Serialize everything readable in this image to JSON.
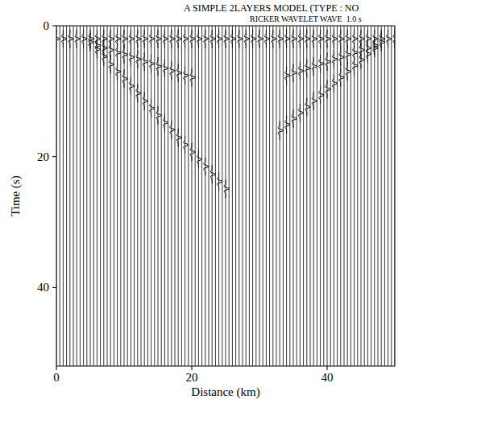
{
  "chart_data": {
    "type": "wiggle",
    "title": "A SIMPLE 2LAYERS MODEL (TYPE : NO",
    "subtitle": "RICKER WAVELET WAVE  1.0 s",
    "x_label": "Distance (km)",
    "y_label": "Time (s)",
    "xlim": [
      0,
      50
    ],
    "ylim": [
      0,
      52
    ],
    "xticks": [
      0,
      20,
      40
    ],
    "yticks": [
      0,
      20,
      40
    ],
    "color": "#000000",
    "x": [
      0,
      0.5,
      1,
      1.5,
      2,
      2.5,
      3,
      3.5,
      4,
      4.5,
      5,
      5.5,
      6,
      6.5,
      7,
      7.5,
      8,
      8.5,
      9,
      9.5,
      10,
      10.5,
      11,
      11.5,
      12,
      12.5,
      13,
      13.5,
      14,
      14.5,
      15,
      15.5,
      16,
      16.5,
      17,
      17.5,
      18,
      18.5,
      19,
      19.5,
      20,
      20.5,
      21,
      21.5,
      22,
      22.5,
      23,
      23.5,
      24,
      24.5,
      25,
      25.5,
      26,
      26.5,
      27,
      27.5,
      28,
      28.5,
      29,
      29.5,
      30,
      30.5,
      31,
      31.5,
      32,
      32.5,
      33,
      33.5,
      34,
      34.5,
      35,
      35.5,
      36,
      36.5,
      37,
      37.5,
      38,
      38.5,
      39,
      39.5,
      40,
      40.5,
      41,
      41.5,
      42,
      42.5,
      43,
      43.5,
      44,
      44.5,
      45,
      45.5,
      46,
      46.5,
      47,
      47.5,
      48,
      48.5,
      49,
      49.5,
      50
    ],
    "series": [
      {
        "x": [
          0,
          1,
          2,
          3,
          4,
          5,
          6,
          7,
          8,
          9,
          10,
          11,
          12,
          13,
          14,
          15,
          16,
          17,
          18,
          19,
          20,
          21,
          22,
          23,
          24,
          25,
          26,
          27,
          28,
          29,
          30,
          31,
          32,
          33,
          34,
          35,
          36,
          37,
          38,
          39,
          40,
          41,
          42,
          43,
          44,
          45,
          46,
          47,
          48,
          49,
          50
        ],
        "values": [
          2.0,
          2.0,
          2.0,
          2.0,
          2.0,
          2.0,
          2.0,
          2.0,
          2.0,
          2.0,
          2.0,
          2.0,
          2.0,
          2.0,
          2.0,
          2.0,
          2.0,
          2.0,
          2.0,
          2.0,
          2.0,
          2.0,
          2.0,
          2.0,
          2.0,
          2.0,
          2.0,
          2.0,
          2.0,
          2.0,
          2.0,
          2.0,
          2.0,
          2.0,
          2.0,
          2.0,
          2.0,
          2.0,
          2.0,
          2.0,
          2.0,
          2.0,
          2.0,
          2.0,
          2.0,
          2.0,
          2.0,
          2.0,
          2.0,
          2.0,
          2.0
        ]
      },
      {
        "x": [
          5,
          6,
          7,
          8,
          9,
          10,
          11,
          12,
          13,
          14,
          15,
          16,
          17,
          18,
          19,
          20,
          21,
          22,
          23,
          24,
          25
        ],
        "values": [
          2.5,
          3.6,
          4.7,
          5.9,
          7.0,
          8.1,
          9.2,
          10.3,
          11.5,
          12.6,
          13.7,
          14.8,
          15.9,
          17.1,
          18.2,
          19.3,
          20.4,
          21.5,
          22.7,
          23.8,
          24.9
        ]
      },
      {
        "x": [
          33,
          34,
          35,
          36,
          37,
          38,
          39,
          40,
          41,
          42,
          43,
          44,
          45,
          46,
          47,
          48
        ],
        "values": [
          16.0,
          15.1,
          14.2,
          13.3,
          12.4,
          11.5,
          10.6,
          9.7,
          8.8,
          7.9,
          7.0,
          6.1,
          5.2,
          4.3,
          3.4,
          2.5
        ]
      },
      {
        "x": [
          6,
          7,
          8,
          9,
          10,
          11,
          12,
          13,
          14,
          15,
          16,
          17,
          18,
          19,
          20
        ],
        "values": [
          3.0,
          3.4,
          3.7,
          4.1,
          4.4,
          4.8,
          5.1,
          5.5,
          5.8,
          6.2,
          6.5,
          6.9,
          7.2,
          7.6,
          7.9
        ]
      },
      {
        "x": [
          34,
          35,
          36,
          37,
          38,
          39,
          40,
          41,
          42,
          43,
          44,
          45,
          46,
          47
        ],
        "values": [
          7.6,
          7.2,
          6.9,
          6.5,
          6.2,
          5.8,
          5.5,
          5.1,
          4.8,
          4.4,
          4.1,
          3.7,
          3.4,
          3.0
        ]
      }
    ]
  }
}
